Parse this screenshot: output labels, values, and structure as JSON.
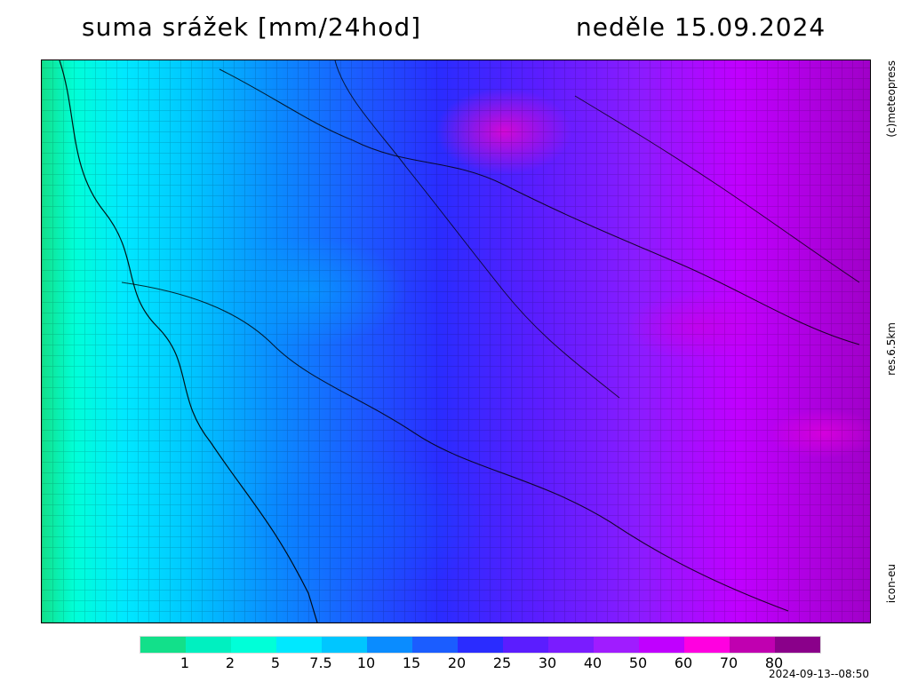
{
  "header": {
    "title_left": "suma srážek [mm/24hod]",
    "title_right": "neděle 15.09.2024"
  },
  "side_labels": {
    "meteopress": "(c)meteopress",
    "resolution": "res.6.5km",
    "model": "icon-eu"
  },
  "legend": {
    "ticks": [
      "1",
      "2",
      "5",
      "7.5",
      "10",
      "15",
      "20",
      "25",
      "30",
      "40",
      "50",
      "60",
      "70",
      "80"
    ],
    "colors": [
      "#12e08a",
      "#00f0c0",
      "#00ffd8",
      "#00e8ff",
      "#00c6ff",
      "#0a8cff",
      "#1b5dff",
      "#2a2cff",
      "#5b1dff",
      "#7a1cff",
      "#a01cff",
      "#c000ff",
      "#ff00e0",
      "#c000b0",
      "#8a008a"
    ]
  },
  "footer": {
    "timestamp": "2024-09-13--08:50"
  }
}
